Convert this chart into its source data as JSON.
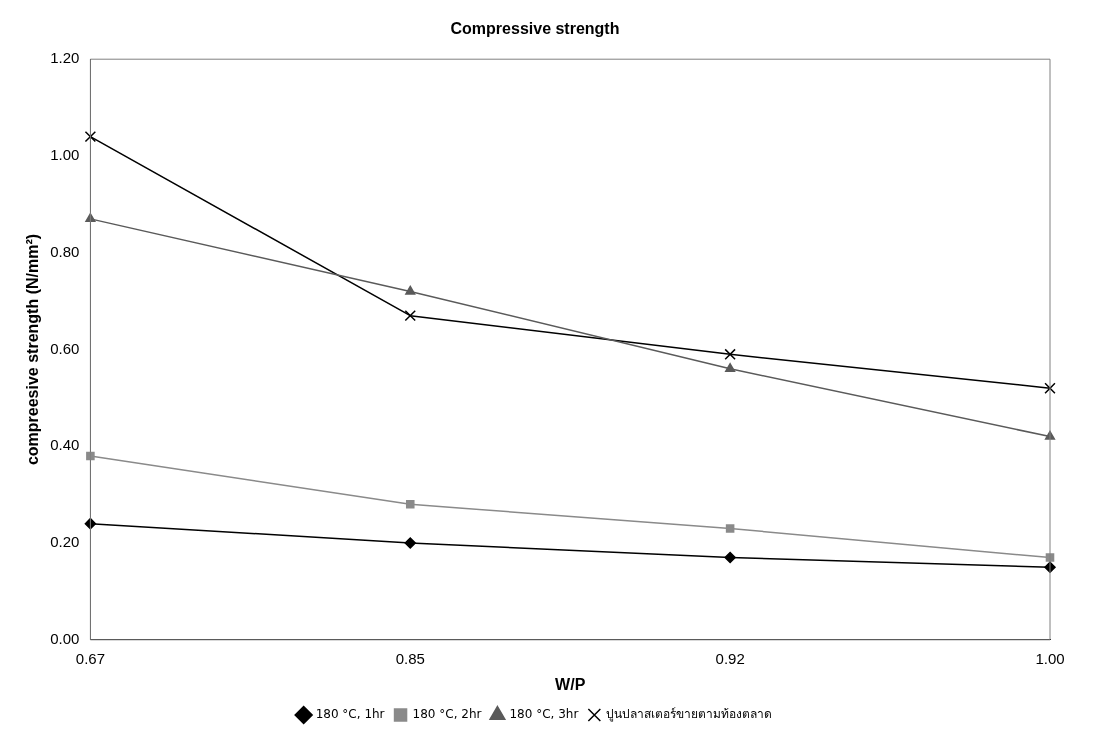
{
  "chart_data": {
    "type": "line",
    "title": "Compressive strength",
    "xlabel": "W/P",
    "ylabel": "compreesive strength (N/mm²)",
    "categories": [
      "0.67",
      "0.85",
      "0.92",
      "1.00"
    ],
    "series": [
      {
        "name": "180 °C, 1hr",
        "color": "#000000",
        "marker": "diamond",
        "values": [
          0.24,
          0.2,
          0.17,
          0.15
        ]
      },
      {
        "name": "180 °C, 2hr",
        "color": "#8a8a8a",
        "marker": "square",
        "values": [
          0.38,
          0.28,
          0.23,
          0.17
        ]
      },
      {
        "name": "180 °C, 3hr",
        "color": "#5a5a5a",
        "marker": "triangle",
        "values": [
          0.87,
          0.72,
          0.56,
          0.42
        ]
      },
      {
        "name": "ปูนปลาสเตอร์ขายตามท้องตลาด",
        "color": "#000000",
        "marker": "cross",
        "values": [
          1.04,
          0.67,
          0.59,
          0.52
        ]
      }
    ],
    "ylim": [
      0,
      1.2
    ],
    "yticks": [
      {
        "value": 0,
        "label": "0.00"
      },
      {
        "value": 0.2,
        "label": "0.20"
      },
      {
        "value": 0.4,
        "label": "0.40"
      },
      {
        "value": 0.6,
        "label": "0.60"
      },
      {
        "value": 0.8,
        "label": "0.80"
      },
      {
        "value": 1.0,
        "label": "1.00"
      },
      {
        "value": 1.2,
        "label": "1.20"
      }
    ],
    "grid": false,
    "legend": "bottom",
    "line_style": "solid"
  }
}
